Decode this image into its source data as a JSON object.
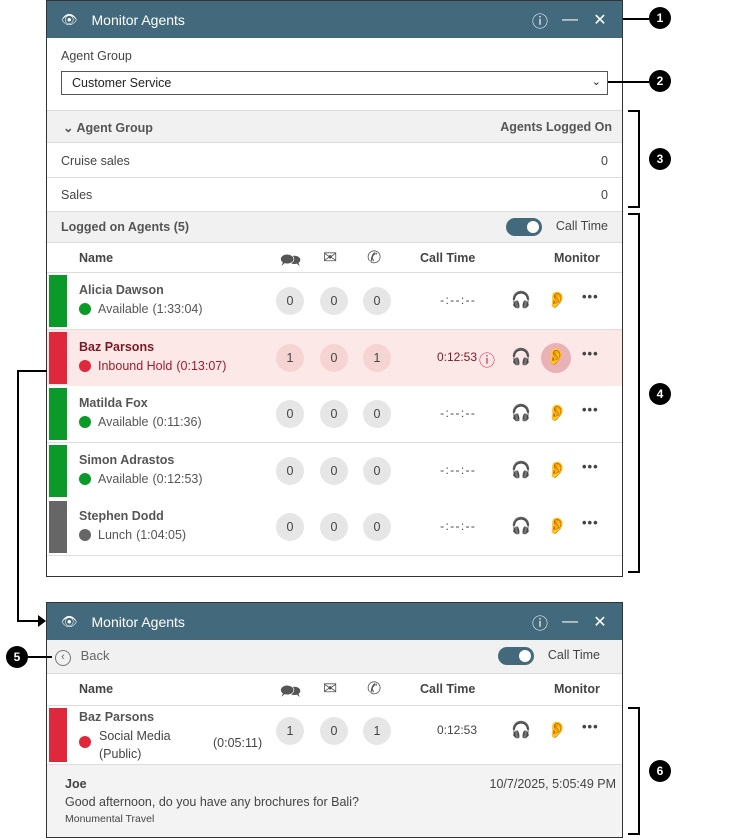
{
  "window": {
    "title": "Monitor Agents",
    "help_icon": "question-circle-icon",
    "min_icon": "minimize-icon",
    "close_icon": "close-icon",
    "header_color": "#426a7c"
  },
  "agent_group": {
    "label": "Agent Group",
    "selected": "Customer Service"
  },
  "groups_table": {
    "col_group": "Agent Group",
    "col_logged": "Agents Logged On",
    "rows": [
      {
        "name": "Cruise sales",
        "count": "0"
      },
      {
        "name": "Sales",
        "count": "0"
      }
    ]
  },
  "logged_on": {
    "title": "Logged on Agents (5)",
    "toggle_label": "Call Time",
    "toggle_on": true
  },
  "columns": {
    "name": "Name",
    "call_time": "Call Time",
    "monitor": "Monitor"
  },
  "agents": [
    {
      "name": "Alicia Dawson",
      "status": "Available",
      "duration": "(1:33:04)",
      "chat": "0",
      "email": "0",
      "phone": "0",
      "call_time": "- : - - : - -",
      "color": "#0b9a2a",
      "highlight": false
    },
    {
      "name": "Baz Parsons",
      "status": "Inbound Hold",
      "duration": "(0:13:07)",
      "chat": "1",
      "email": "0",
      "phone": "1",
      "call_time": "0:12:53",
      "color": "#e0283c",
      "highlight": true
    },
    {
      "name": "Matilda Fox",
      "status": "Available",
      "duration": "(0:11:36)",
      "chat": "0",
      "email": "0",
      "phone": "0",
      "call_time": "- : - - : - -",
      "color": "#0b9a2a",
      "highlight": false
    },
    {
      "name": "Simon Adrastos",
      "status": "Available",
      "duration": "(0:12:53)",
      "chat": "0",
      "email": "0",
      "phone": "0",
      "call_time": "- : - - : - -",
      "color": "#0b9a2a",
      "highlight": false
    },
    {
      "name": "Stephen Dodd",
      "status": "Lunch",
      "duration": "(1:04:05)",
      "chat": "0",
      "email": "0",
      "phone": "0",
      "call_time": "- : - - : - -",
      "color": "#666666",
      "highlight": false
    }
  ],
  "detail": {
    "back": "Back",
    "toggle_label": "Call Time",
    "agent": {
      "name": "Baz Parsons",
      "status": "Social Media (Public)",
      "duration": "(0:05:11)",
      "chat": "1",
      "email": "0",
      "phone": "1",
      "call_time": "0:12:53",
      "color": "#e0283c"
    },
    "message": {
      "sender": "Joe",
      "text": "Good afternoon, do you have any brochures for Bali?",
      "source": "Monumental Travel",
      "timestamp": "10/7/2025, 5:05:49 PM"
    }
  },
  "callouts": [
    "1",
    "2",
    "3",
    "4",
    "5",
    "6"
  ]
}
